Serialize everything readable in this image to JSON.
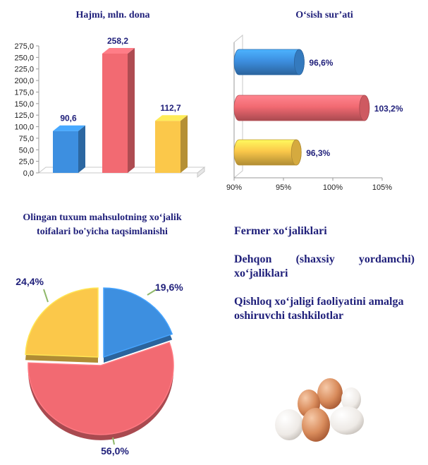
{
  "chart_data": [
    {
      "type": "bar",
      "title": "Hajmi, mln. dona",
      "categories": [
        "Fermer xo‘jaliklari",
        "Dehqon (shaxsiy yordamchi) xo‘jaliklari",
        "Qishloq xo‘jaligi faoliyatini amalga oshiruvchi tashkilotlar"
      ],
      "values": [
        90.6,
        258.2,
        112.7
      ],
      "value_labels": [
        "90,6",
        "258,2",
        "112,7"
      ],
      "ylim": [
        0,
        275
      ],
      "yticks": [
        "0,0",
        "25,0",
        "50,0",
        "75,0",
        "100,0",
        "125,0",
        "150,0",
        "175,0",
        "200,0",
        "225,0",
        "250,0",
        "275,0"
      ],
      "colors": [
        "#3d8fe0",
        "#f26a72",
        "#fbc84a"
      ]
    },
    {
      "type": "bar",
      "orientation": "horizontal",
      "title": "O‘sish sur’ati",
      "categories": [
        "Fermer xo‘jaliklari",
        "Dehqon (shaxsiy yordamchi) xo‘jaliklari",
        "Qishloq xo‘jaligi faoliyatini amalga oshiruvchi tashkilotlar"
      ],
      "values": [
        96.6,
        103.2,
        96.3
      ],
      "value_labels": [
        "96,6%",
        "103,2%",
        "96,3%"
      ],
      "xlim": [
        90,
        105
      ],
      "xticks": [
        "90%",
        "95%",
        "100%",
        "105%"
      ],
      "colors": [
        "#3d8fe0",
        "#f26a72",
        "#fbc84a"
      ]
    },
    {
      "type": "pie",
      "title": "Olingan tuxum mahsulotning xo‘jalik toifalari bo'yicha taqsimlanishi",
      "categories": [
        "Fermer xo‘jaliklari",
        "Dehqon (shaxsiy yordamchi) xo‘jaliklari",
        "Qishloq xo‘jaligi faoliyatini amalga oshiruvchi tashkilotlar"
      ],
      "values": [
        19.6,
        56.0,
        24.4
      ],
      "value_labels": [
        "19,6%",
        "56,0%",
        "24,4%"
      ],
      "colors": [
        "#3d8fe0",
        "#f26a72",
        "#fbc84a"
      ]
    }
  ],
  "legend": [
    "Fermer xo‘jaliklari",
    "Dehqon (shaxsiy yordamchi) xo‘jaliklari",
    "Qishloq xo‘jaligi faoliyatini amalga oshiruvchi tashkilotlar"
  ]
}
